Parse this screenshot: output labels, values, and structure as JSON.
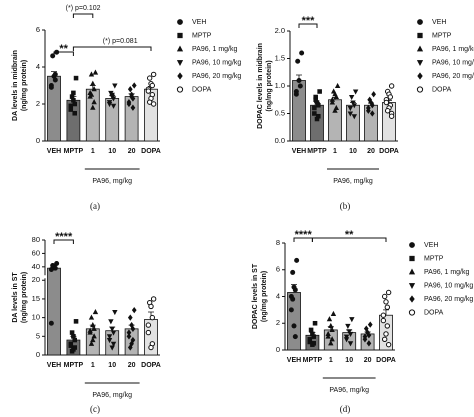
{
  "chart_data": [
    {
      "type": "bar",
      "panel_label": "(a)",
      "ylabel": [
        "DA levels in midbrain",
        "(ng/mg protein)"
      ],
      "xlabel": "PA96, mg/kg",
      "categories": [
        "VEH",
        "MPTP",
        "1",
        "10",
        "20",
        "DOPA"
      ],
      "values": [
        3.5,
        2.2,
        2.8,
        2.3,
        2.4,
        2.8
      ],
      "errors": [
        0.25,
        0.2,
        0.2,
        0.15,
        0.15,
        0.15
      ],
      "points": [
        [
          4.8,
          4.6,
          3.5,
          3.3,
          3.0,
          2.9,
          3.6
        ],
        [
          3.4,
          2.4,
          2.2,
          2.0,
          1.9,
          1.7,
          1.5,
          2.6
        ],
        [
          3.7,
          3.6,
          3.1,
          2.8,
          2.6,
          2.4,
          2.1,
          1.8,
          2.5
        ],
        [
          3.0,
          2.6,
          2.4,
          2.3,
          2.1,
          2.0,
          1.9,
          2.5
        ],
        [
          3.0,
          2.8,
          2.4,
          2.3,
          2.1,
          2.0,
          1.8,
          2.5
        ],
        [
          3.6,
          3.4,
          3.1,
          3.0,
          2.8,
          2.7,
          2.5,
          2.3,
          2.1,
          2.0
        ]
      ],
      "bar_colors": [
        "#8c8c8c",
        "#6e6e6e",
        "#b4b4b4",
        "#b4b4b4",
        "#b4b4b4",
        "#e2e2e2"
      ],
      "markers": [
        "circle",
        "square",
        "triangle-up",
        "triangle-down",
        "diamond",
        "circle-open"
      ],
      "legend": [
        "VEH",
        "MPTP",
        "PA96, 1 mg/kg",
        "PA96, 10 mg/kg",
        "PA96, 20 mg/kg",
        "DOPA"
      ],
      "annotations": [
        "**",
        "(*) p=0.102",
        "(*) p=0.081"
      ],
      "ylim": [
        0,
        6
      ],
      "yticks": [
        0,
        2,
        4,
        6
      ]
    },
    {
      "type": "bar",
      "panel_label": "(b)",
      "ylabel": [
        "DOPAC levels in midbrain",
        "(ng/mg protein)"
      ],
      "xlabel": "PA96, mg/kg",
      "categories": [
        "VEH",
        "MPTP",
        "1",
        "10",
        "20",
        "DOPA"
      ],
      "values": [
        1.1,
        0.65,
        0.75,
        0.65,
        0.65,
        0.7
      ],
      "errors": [
        0.1,
        0.05,
        0.04,
        0.05,
        0.04,
        0.04
      ],
      "points": [
        [
          1.6,
          1.45,
          1.1,
          1.0,
          0.9,
          0.85
        ],
        [
          0.9,
          0.8,
          0.7,
          0.65,
          0.6,
          0.5,
          0.45,
          0.4,
          0.75
        ],
        [
          1.0,
          0.9,
          0.85,
          0.8,
          0.75,
          0.7,
          0.6,
          0.55
        ],
        [
          0.9,
          0.8,
          0.7,
          0.65,
          0.6,
          0.5,
          0.45
        ],
        [
          0.85,
          0.75,
          0.7,
          0.65,
          0.6,
          0.55,
          0.5
        ],
        [
          1.0,
          0.9,
          0.85,
          0.8,
          0.75,
          0.7,
          0.65,
          0.6,
          0.55,
          0.5,
          0.45
        ]
      ],
      "bar_colors": [
        "#8c8c8c",
        "#6e6e6e",
        "#b4b4b4",
        "#b4b4b4",
        "#b4b4b4",
        "#e2e2e2"
      ],
      "markers": [
        "circle",
        "square",
        "triangle-up",
        "triangle-down",
        "diamond",
        "circle-open"
      ],
      "legend": [
        "VEH",
        "MPTP",
        "PA96, 1 mg/kg",
        "PA96, 10 mg/kg",
        "PA96, 20 mg/kg",
        "DOPA"
      ],
      "annotations": [
        "***"
      ],
      "ylim": [
        0,
        2
      ],
      "yticks": [
        {
          "value": 0,
          "label": "0.0"
        },
        {
          "value": 0.5,
          "label": "0.5"
        },
        {
          "value": 1,
          "label": "1.0"
        },
        {
          "value": 1.5,
          "label": "1.5"
        },
        {
          "value": 2,
          "label": "2.0"
        }
      ]
    },
    {
      "type": "bar",
      "panel_label": "(c)",
      "ylabel": [
        "DA levels in ST",
        "(ng/mg protein)"
      ],
      "xlabel": "PA96, mg/kg",
      "categories": [
        "VEH",
        "MPTP",
        "1",
        "10",
        "20",
        "DOPA"
      ],
      "values": [
        38,
        4,
        7,
        6.5,
        7,
        9.5
      ],
      "errors": [
        4,
        1,
        1,
        1,
        1,
        2
      ],
      "points": [
        [
          45,
          42,
          40,
          38,
          36,
          8.5
        ],
        [
          9,
          6,
          5,
          4,
          3,
          2.5,
          2,
          1.5,
          1
        ],
        [
          11.5,
          10,
          8,
          7,
          6.5,
          6,
          5,
          4,
          3
        ],
        [
          11.5,
          9,
          7,
          6,
          5,
          4,
          3,
          2
        ],
        [
          12,
          10,
          8,
          7,
          6,
          5,
          4,
          3,
          2
        ],
        [
          15,
          14,
          13,
          10,
          8,
          6,
          3,
          2
        ]
      ],
      "bar_colors": [
        "#8c8c8c",
        "#6e6e6e",
        "#b4b4b4",
        "#b4b4b4",
        "#b4b4b4",
        "#e2e2e2"
      ],
      "markers": [
        "circle",
        "square",
        "triangle-up",
        "triangle-down",
        "diamond",
        "circle-open"
      ],
      "annotations": [
        "****"
      ],
      "ylim": [
        0,
        80
      ],
      "ybreak": 20,
      "yticks": [
        0,
        5,
        10,
        15,
        20,
        40,
        60,
        80
      ]
    },
    {
      "type": "bar",
      "panel_label": "(d)",
      "ylabel": [
        "DOPAC levels in ST",
        "(ng/mg protein)"
      ],
      "xlabel": "PA96, mg/kg",
      "categories": [
        "VEH",
        "MPTP",
        "1",
        "10",
        "20",
        "DOPA"
      ],
      "values": [
        4.3,
        1.1,
        1.5,
        1.3,
        1.2,
        2.6
      ],
      "errors": [
        0.6,
        0.2,
        0.25,
        0.2,
        0.15,
        0.4
      ],
      "points": [
        [
          6.7,
          5.8,
          4.7,
          4.5,
          4.0,
          3.0,
          1.0,
          1.8,
          3.8
        ],
        [
          2.0,
          1.5,
          1.2,
          1.0,
          0.8,
          0.6,
          0.5,
          0.4
        ],
        [
          2.7,
          2.3,
          1.8,
          1.5,
          1.2,
          1.0,
          0.8,
          0.5
        ],
        [
          2.3,
          1.8,
          1.4,
          1.2,
          1.0,
          0.8,
          0.5
        ],
        [
          1.9,
          1.6,
          1.3,
          1.1,
          1.0,
          0.8,
          0.5
        ],
        [
          4.3,
          4.0,
          3.6,
          3.2,
          2.6,
          2.2,
          1.8,
          1.2,
          0.8,
          0.4
        ]
      ],
      "bar_colors": [
        "#8c8c8c",
        "#6e6e6e",
        "#b4b4b4",
        "#b4b4b4",
        "#b4b4b4",
        "#e2e2e2"
      ],
      "markers": [
        "circle",
        "square",
        "triangle-up",
        "triangle-down",
        "diamond",
        "circle-open"
      ],
      "legend": [
        "VEH",
        "MPTP",
        "PA96, 1 mg/kg",
        "PA96, 10 mg/kg",
        "PA96, 20 mg/kg",
        "DOPA"
      ],
      "annotations": [
        "****",
        "**"
      ],
      "ylim": [
        0,
        8
      ],
      "yticks": [
        0,
        2,
        4,
        6,
        8
      ]
    }
  ]
}
